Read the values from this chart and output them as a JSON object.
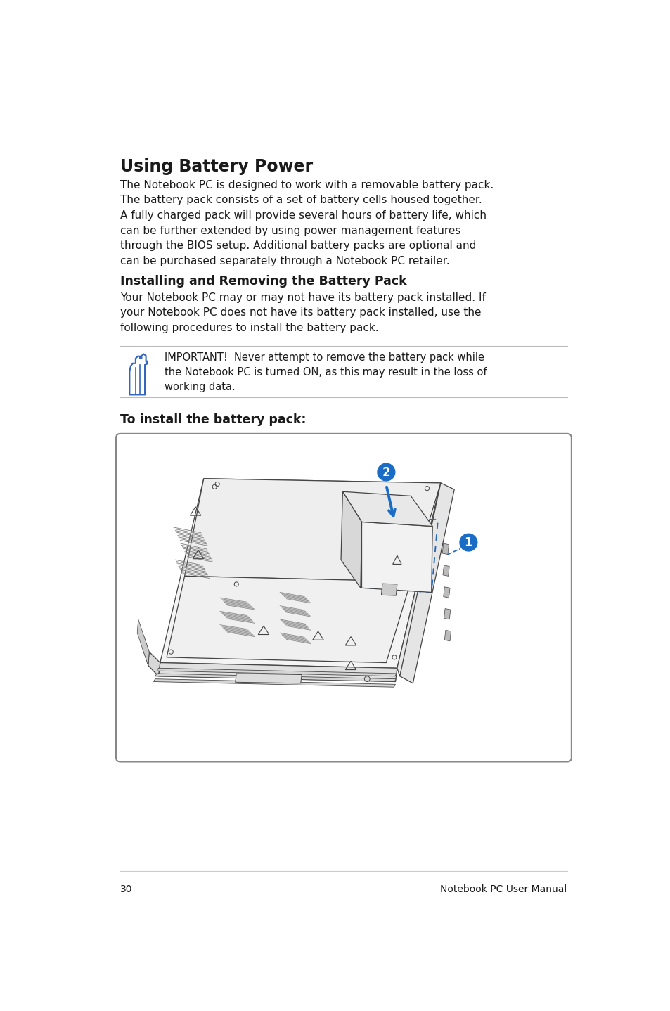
{
  "title": "Using Battery Power",
  "title_fontsize": 17,
  "subtitle_fontsize": 12.5,
  "body_fontsize": 11,
  "footer_fontsize": 10,
  "bg_color": "#ffffff",
  "text_color": "#1a1a1a",
  "page_number": "30",
  "footer_right": "Notebook PC User Manual",
  "section1_title": "Using Battery Power",
  "section1_body": "The Notebook PC is designed to work with a removable battery pack.\nThe battery pack consists of a set of battery cells housed together.\nA fully charged pack will provide several hours of battery life, which\ncan be further extended by using power management features\nthrough the BIOS setup. Additional battery packs are optional and\ncan be purchased separately through a Notebook PC retailer.",
  "section2_title": "Installing and Removing the Battery Pack",
  "section2_body": "Your Notebook PC may or may not have its battery pack installed. If\nyour Notebook PC does not have its battery pack installed, use the\nfollowing procedures to install the battery pack.",
  "warning_text": "IMPORTANT!  Never attempt to remove the battery pack while\nthe Notebook PC is turned ON, as this may result in the loss of\nworking data.",
  "section3_title": "To install the battery pack:"
}
